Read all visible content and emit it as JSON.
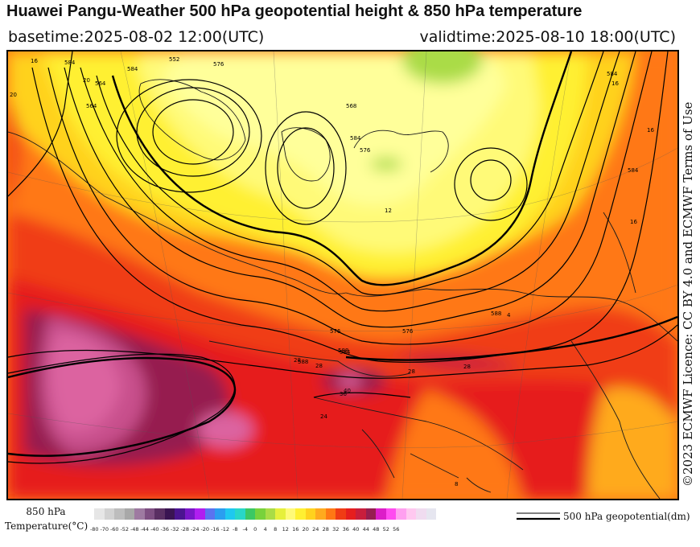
{
  "header": {
    "title": "Huawei Pangu-Weather 500 hPa geopotential height & 850 hPa temperature",
    "basetime": "basetime:2025-08-02 12:00(UTC)",
    "validtime": "validtime:2025-08-10 18:00(UTC)"
  },
  "credit": "©2023 ECMWF Licence: CC BY 4.0 and ECMWF Terms of Use",
  "legend": {
    "temperature_title_line1": "850 hPa",
    "temperature_title_line2": "Temperature(°C)",
    "geopotential_label": "500 hPa geopotential(dm)",
    "ticks": [
      "-80",
      "-70",
      "-60",
      "-52",
      "-48",
      "-44",
      "-40",
      "-36",
      "-32",
      "-28",
      "-24",
      "-20",
      "-16",
      "-12",
      "-8",
      "-4",
      "0",
      "4",
      "8",
      "12",
      "16",
      "20",
      "24",
      "28",
      "32",
      "36",
      "40",
      "44",
      "48",
      "52",
      "56"
    ],
    "colors": [
      "#e6e6e6",
      "#d2d2d2",
      "#bdbdbd",
      "#a8a8a8",
      "#9e7aa1",
      "#7e4f82",
      "#5a2f63",
      "#3a1452",
      "#4b1490",
      "#7a16c8",
      "#b01ef0",
      "#5a73f0",
      "#2a9ef0",
      "#1ec8f0",
      "#28d7c8",
      "#3cc864",
      "#78d23c",
      "#aadc46",
      "#e6f03c",
      "#fffa78",
      "#fff032",
      "#ffd21e",
      "#ffaa1e",
      "#ff7814",
      "#f03c14",
      "#e61e1e",
      "#c81e3c",
      "#961e50",
      "#dc1ec8",
      "#ff4bf0",
      "#ffa0f0",
      "#ffc8f0",
      "#f0dcf0",
      "#e6e6f0"
    ]
  },
  "map_labels": {
    "contours": [
      "552",
      "564",
      "564",
      "568",
      "584",
      "576",
      "584",
      "576",
      "584",
      "588",
      "588",
      "588",
      "576",
      "576",
      "584",
      "584",
      "584"
    ],
    "temps": [
      "20",
      "16",
      "20",
      "16",
      "16",
      "28",
      "28",
      "28",
      "36",
      "40",
      "28",
      "24",
      "16",
      "12",
      "8",
      "4"
    ]
  }
}
